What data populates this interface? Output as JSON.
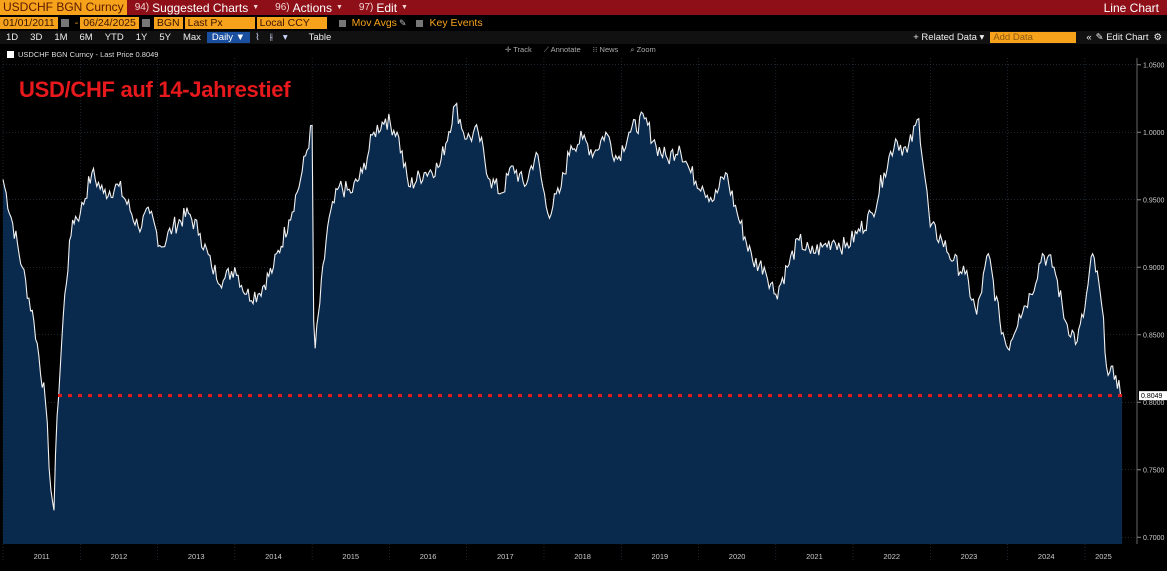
{
  "header": {
    "ticker": "USDCHF BGN Curncy",
    "menus": [
      {
        "num": "94)",
        "label": "Suggested Charts"
      },
      {
        "num": "96)",
        "label": "Actions"
      },
      {
        "num": "97)",
        "label": "Edit"
      }
    ],
    "chart_type": "Line Chart"
  },
  "controls": {
    "start_date": "01/01/2011",
    "end_date": "06/24/2025",
    "source": "BGN",
    "field": "Last Px",
    "currency": "Local CCY",
    "mov_avgs": "Mov Avgs",
    "key_events": "Key Events",
    "periods": [
      "1D",
      "3D",
      "1M",
      "6M",
      "YTD",
      "1Y",
      "5Y",
      "Max"
    ],
    "frequency": "Daily",
    "table": "Table",
    "related_data": "+ Related Data",
    "add_data": "Add Data",
    "edit_chart": "Edit Chart"
  },
  "chart_tools": [
    "Track",
    "Annotate",
    "News",
    "Zoom"
  ],
  "chart_data": {
    "type": "line",
    "legend_entry": "USDCHF BGN Curncy - Last Price 0.8049",
    "annotation": "USD/CHF auf 14-Jahrestief",
    "last_price_label": "0.8049",
    "reference_line": 0.805,
    "y_ticks": [
      "1.0500",
      "1.0000",
      "0.9500",
      "0.9000",
      "0.8500",
      "0.8000",
      "0.7500",
      "0.7000"
    ],
    "ylim": [
      0.695,
      1.055
    ],
    "x_ticks": [
      "2011",
      "2012",
      "2013",
      "2014",
      "2015",
      "2016",
      "2017",
      "2018",
      "2019",
      "2020",
      "2021",
      "2022",
      "2023",
      "2024",
      "2025"
    ],
    "x": [
      2011.0,
      2011.25,
      2011.4,
      2011.55,
      2011.62,
      2011.66,
      2011.7,
      2011.8,
      2011.9,
      2012.0,
      2012.15,
      2012.3,
      2012.5,
      2012.75,
      2012.9,
      2013.05,
      2013.2,
      2013.4,
      2013.55,
      2013.7,
      2013.85,
      2014.0,
      2014.15,
      2014.3,
      2014.5,
      2014.7,
      2014.85,
      2015.0,
      2015.02,
      2015.04,
      2015.2,
      2015.35,
      2015.5,
      2015.65,
      2015.8,
      2015.95,
      2016.1,
      2016.25,
      2016.45,
      2016.65,
      2016.85,
      2017.0,
      2017.15,
      2017.3,
      2017.45,
      2017.6,
      2017.75,
      2017.9,
      2018.05,
      2018.2,
      2018.35,
      2018.5,
      2018.65,
      2018.8,
      2018.95,
      2019.1,
      2019.3,
      2019.45,
      2019.6,
      2019.75,
      2019.9,
      2020.05,
      2020.2,
      2020.35,
      2020.5,
      2020.7,
      2020.85,
      2021.0,
      2021.15,
      2021.3,
      2021.45,
      2021.6,
      2021.75,
      2021.9,
      2022.05,
      2022.25,
      2022.4,
      2022.55,
      2022.7,
      2022.85,
      2023.0,
      2023.15,
      2023.3,
      2023.45,
      2023.6,
      2023.75,
      2023.9,
      2024.0,
      2024.15,
      2024.3,
      2024.45,
      2024.6,
      2024.75,
      2024.9,
      2025.0,
      2025.1,
      2025.2,
      2025.3,
      2025.4,
      2025.48
    ],
    "values": [
      0.965,
      0.9,
      0.86,
      0.8,
      0.735,
      0.72,
      0.79,
      0.88,
      0.935,
      0.94,
      0.97,
      0.955,
      0.96,
      0.93,
      0.94,
      0.915,
      0.93,
      0.94,
      0.925,
      0.9,
      0.89,
      0.9,
      0.88,
      0.88,
      0.9,
      0.935,
      0.965,
      1.005,
      0.86,
      0.84,
      0.93,
      0.96,
      0.955,
      0.97,
      1.0,
      1.01,
      1.0,
      0.96,
      0.97,
      0.975,
      1.02,
      0.995,
      1.0,
      0.965,
      0.955,
      0.975,
      0.96,
      0.985,
      0.94,
      0.955,
      0.99,
      0.995,
      0.985,
      1.0,
      0.98,
      1.0,
      1.01,
      0.99,
      0.98,
      0.99,
      0.97,
      0.96,
      0.95,
      0.97,
      0.94,
      0.905,
      0.9,
      0.88,
      0.9,
      0.92,
      0.91,
      0.915,
      0.92,
      0.915,
      0.925,
      0.94,
      0.97,
      0.995,
      0.985,
      1.01,
      0.93,
      0.92,
      0.905,
      0.895,
      0.865,
      0.91,
      0.86,
      0.84,
      0.865,
      0.88,
      0.91,
      0.9,
      0.86,
      0.845,
      0.87,
      0.91,
      0.88,
      0.82,
      0.82,
      0.8049
    ],
    "grid": true,
    "legend_placement": "top-left"
  }
}
